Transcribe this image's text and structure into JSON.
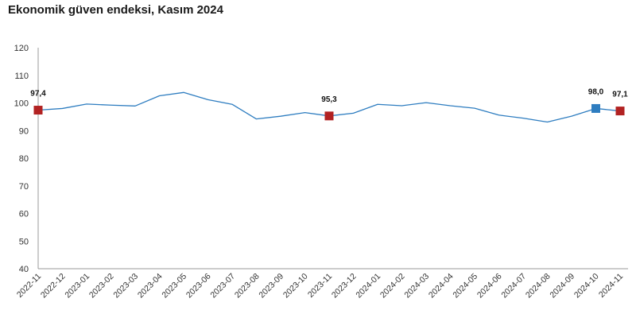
{
  "chart_data": {
    "type": "line",
    "title": "Ekonomik güven endeksi, Kasım 2024",
    "xlabel": "",
    "ylabel": "",
    "ylim": [
      40,
      120
    ],
    "yticks": [
      40,
      50,
      60,
      70,
      80,
      90,
      100,
      110,
      120
    ],
    "grid": false,
    "legend": "none",
    "categories": [
      "2022-11",
      "2022-12",
      "2023-01",
      "2023-02",
      "2023-03",
      "2023-04",
      "2023-05",
      "2023-06",
      "2023-07",
      "2023-08",
      "2023-09",
      "2023-10",
      "2023-11",
      "2023-12",
      "2024-01",
      "2024-02",
      "2024-03",
      "2024-04",
      "2024-05",
      "2024-06",
      "2024-07",
      "2024-08",
      "2024-09",
      "2024-10",
      "2024-11"
    ],
    "series": [
      {
        "values": [
          97.4,
          98.0,
          99.6,
          99.2,
          98.9,
          102.6,
          103.8,
          101.2,
          99.5,
          94.2,
          95.2,
          96.5,
          95.3,
          96.3,
          99.5,
          99.0,
          100.1,
          99.0,
          98.1,
          95.6,
          94.5,
          93.1,
          95.2,
          98.0,
          97.1
        ],
        "color": "#2e7dc0"
      }
    ],
    "markers": [
      {
        "index": 0,
        "label": "97,4",
        "color": "#b22222"
      },
      {
        "index": 12,
        "label": "95,3",
        "color": "#b22222"
      },
      {
        "index": 23,
        "label": "98,0",
        "color": "#2e7dc0"
      },
      {
        "index": 24,
        "label": "97,1",
        "color": "#b22222"
      }
    ]
  }
}
